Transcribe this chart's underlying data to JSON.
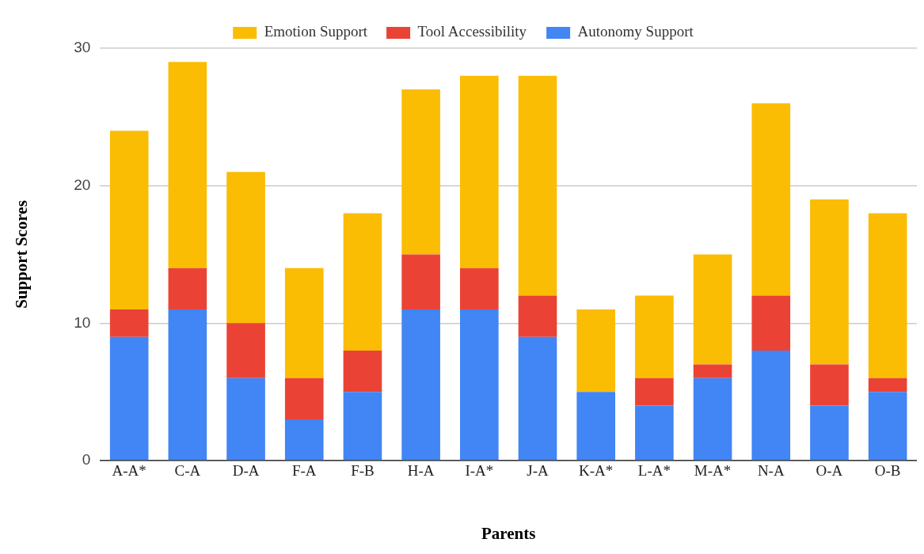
{
  "chart_data": {
    "type": "bar",
    "stacked": true,
    "xlabel": "Parents",
    "ylabel": "Support Scores",
    "categories": [
      "A-A*",
      "C-A",
      "D-A",
      "F-A",
      "F-B",
      "H-A",
      "I-A*",
      "J-A",
      "K-A*",
      "L-A*",
      "M-A*",
      "N-A",
      "O-A",
      "O-B"
    ],
    "series": [
      {
        "name": "Autonomy Support",
        "color": "#4285f4",
        "values": [
          9,
          11,
          6,
          3,
          5,
          11,
          11,
          9,
          5,
          4,
          6,
          8,
          4,
          5
        ]
      },
      {
        "name": "Tool Accessibility",
        "color": "#ea4335",
        "values": [
          2,
          3,
          4,
          3,
          3,
          4,
          3,
          3,
          0,
          2,
          1,
          4,
          3,
          1
        ]
      },
      {
        "name": "Emotion Support",
        "color": "#fbbc04",
        "values": [
          13,
          15,
          11,
          8,
          10,
          12,
          14,
          16,
          6,
          6,
          8,
          14,
          12,
          12
        ]
      }
    ],
    "ylim": [
      0,
      30
    ],
    "yticks": [
      0,
      10,
      20,
      30
    ],
    "grid": "y",
    "legend": "top"
  }
}
